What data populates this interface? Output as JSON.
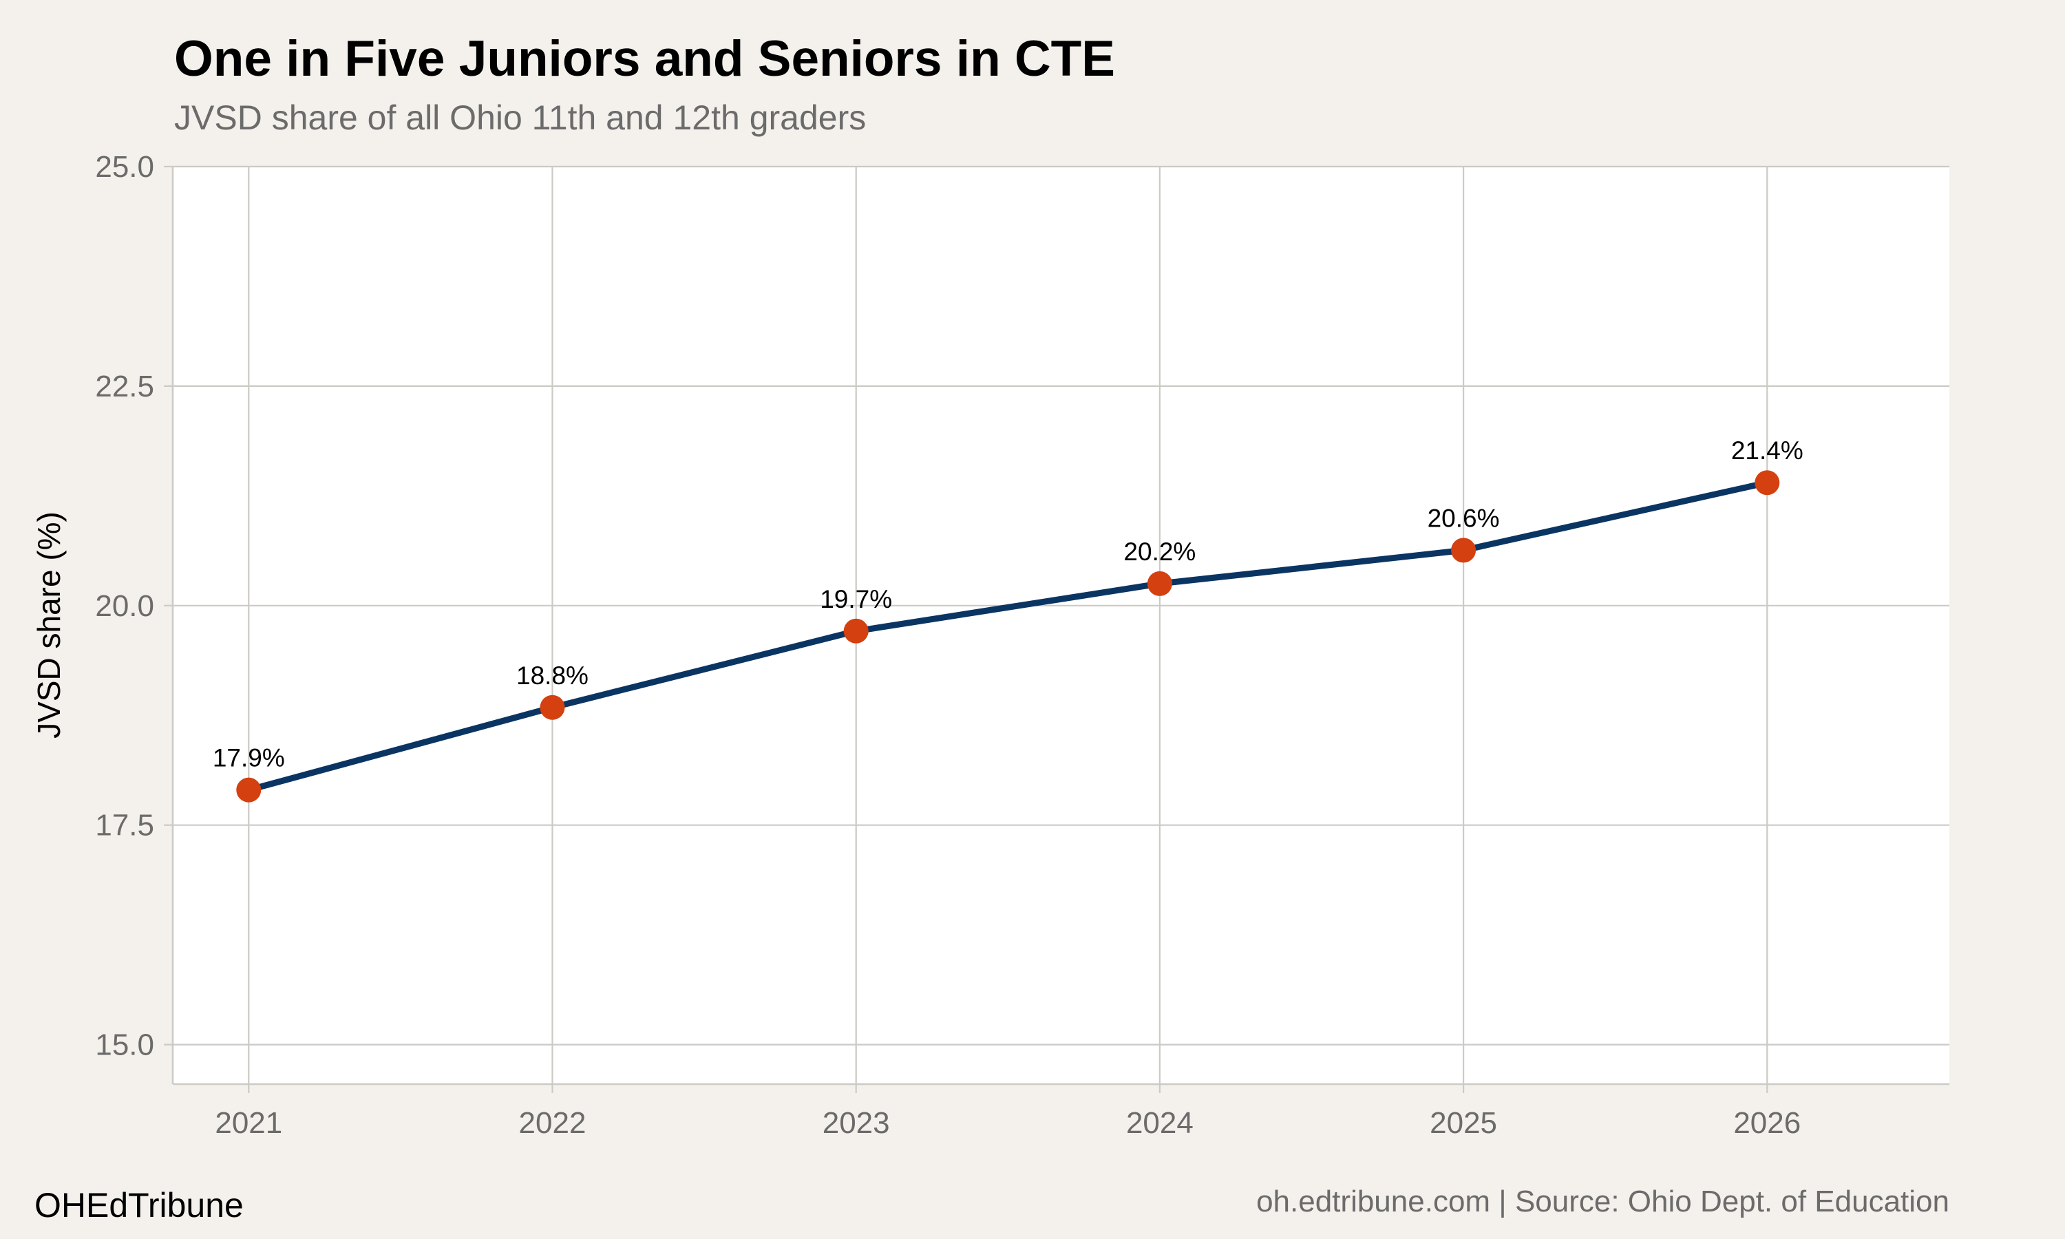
{
  "chart_data": {
    "type": "line",
    "title": "One in Five Juniors and Seniors in CTE",
    "subtitle": "JVSD share of all Ohio 11th and 12th graders",
    "xlabel": "",
    "ylabel": "JVSD share (%)",
    "x": [
      2021,
      2022,
      2023,
      2024,
      2025,
      2026
    ],
    "x_tick_labels": [
      "2021",
      "2022",
      "2023",
      "2024",
      "2025",
      "2026"
    ],
    "y_ticks": [
      15.0,
      17.5,
      20.0,
      22.5,
      25.0
    ],
    "y_tick_labels": [
      "15.0",
      "17.5",
      "20.0",
      "22.5",
      "25.0"
    ],
    "ylim": [
      14.55,
      25.0
    ],
    "xlim": [
      2020.75,
      2026.6
    ],
    "grid": true,
    "series": [
      {
        "values": [
          17.9,
          18.84,
          19.71,
          20.25,
          20.63,
          21.4
        ],
        "labels": [
          "17.9%",
          "18.8%",
          "19.7%",
          "20.2%",
          "20.6%",
          "21.4%"
        ]
      }
    ],
    "colors": {
      "line": "#0a3563",
      "marker": "#d4400f",
      "grid": "#cccac4",
      "panel": "#ffffff",
      "background": "#f4f1ec"
    }
  },
  "footer": {
    "brand": "OHEdTribune",
    "caption": "oh.edtribune.com | Source: Ohio Dept. of Education"
  }
}
